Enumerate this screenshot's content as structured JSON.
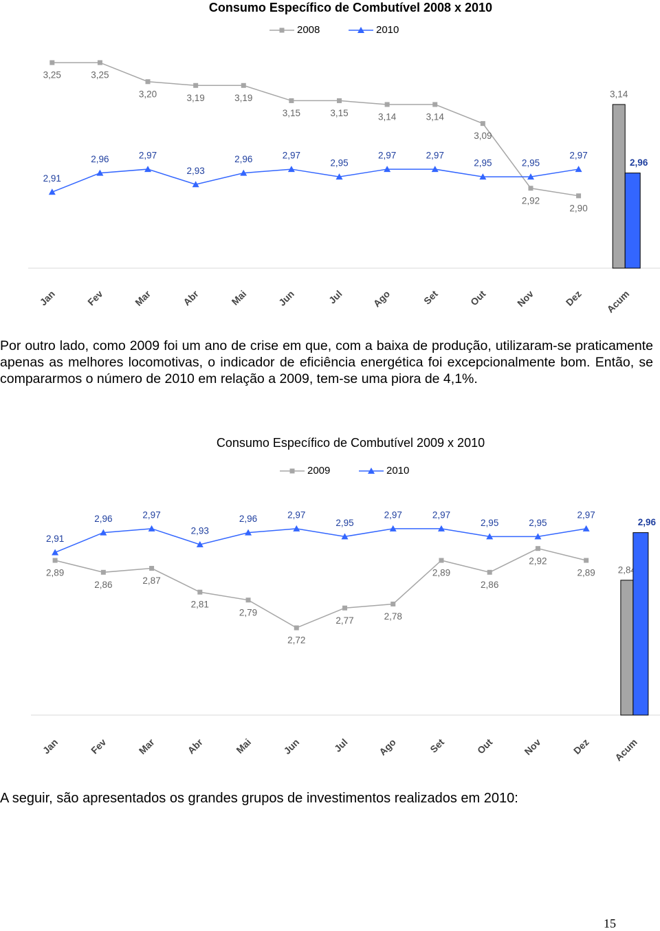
{
  "chart_data": [
    {
      "type": "combo",
      "title": "Consumo Específico de Combutível 2008 x 2010",
      "categories": [
        "Jan",
        "Fev",
        "Mar",
        "Abr",
        "Mai",
        "Jun",
        "Jul",
        "Ago",
        "Set",
        "Out",
        "Nov",
        "Dez",
        "Acum"
      ],
      "ylim": [
        2.71,
        3.27
      ],
      "series": [
        {
          "name": "2008",
          "color": "#a6a6a6",
          "marker": "square",
          "values": [
            3.25,
            3.25,
            3.2,
            3.19,
            3.19,
            3.15,
            3.15,
            3.14,
            3.14,
            3.09,
            2.92,
            2.9,
            3.14
          ],
          "value_labels": [
            "3,25",
            "3,25",
            "3,20",
            "3,19",
            "3,19",
            "3,15",
            "3,15",
            "3,14",
            "3,14",
            "3,09",
            "2,92",
            "2,90",
            "3,14"
          ]
        },
        {
          "name": "2010",
          "color": "#3366ff",
          "marker": "triangle",
          "values": [
            2.91,
            2.96,
            2.97,
            2.93,
            2.96,
            2.97,
            2.95,
            2.97,
            2.97,
            2.95,
            2.95,
            2.97,
            2.96
          ],
          "value_labels": [
            "2,91",
            "2,96",
            "2,97",
            "2,93",
            "2,96",
            "2,97",
            "2,95",
            "2,97",
            "2,97",
            "2,95",
            "2,95",
            "2,97",
            "2,96"
          ]
        }
      ]
    },
    {
      "type": "combo",
      "title": "Consumo Específico de Combutível 2009 x 2010",
      "categories": [
        "Jan",
        "Fev",
        "Mar",
        "Abr",
        "Mai",
        "Jun",
        "Jul",
        "Ago",
        "Set",
        "Out",
        "Nov",
        "Dez",
        "Acum"
      ],
      "ylim": [
        2.5,
        3.02
      ],
      "series": [
        {
          "name": "2009",
          "color": "#a6a6a6",
          "marker": "square",
          "values": [
            2.89,
            2.86,
            2.87,
            2.81,
            2.79,
            2.72,
            2.77,
            2.78,
            2.89,
            2.86,
            2.92,
            2.89,
            2.84
          ],
          "value_labels": [
            "2,89",
            "2,86",
            "2,87",
            "2,81",
            "2,79",
            "2,72",
            "2,77",
            "2,78",
            "2,89",
            "2,86",
            "2,92",
            "2,89",
            "2,84"
          ]
        },
        {
          "name": "2010",
          "color": "#3366ff",
          "marker": "triangle",
          "values": [
            2.91,
            2.96,
            2.97,
            2.93,
            2.96,
            2.97,
            2.95,
            2.97,
            2.97,
            2.95,
            2.95,
            2.97,
            2.96
          ],
          "value_labels": [
            "2,91",
            "2,96",
            "2,97",
            "2,93",
            "2,96",
            "2,97",
            "2,95",
            "2,97",
            "2,97",
            "2,95",
            "2,95",
            "2,97",
            "2,96"
          ]
        }
      ]
    }
  ],
  "paragraphs": [
    "Por outro lado, como 2009 foi um ano de crise em que, com a baixa de produção, utilizaram-se praticamente apenas as melhores locomotivas, o indicador de eficiência energética foi excepcionalmente bom. Então, se compararmos o número de 2010 em relação a 2009, tem-se uma piora de 4,1%.",
    "A seguir, são apresentados os grandes grupos de investimentos realizados em 2010:"
  ],
  "page_number": "15"
}
